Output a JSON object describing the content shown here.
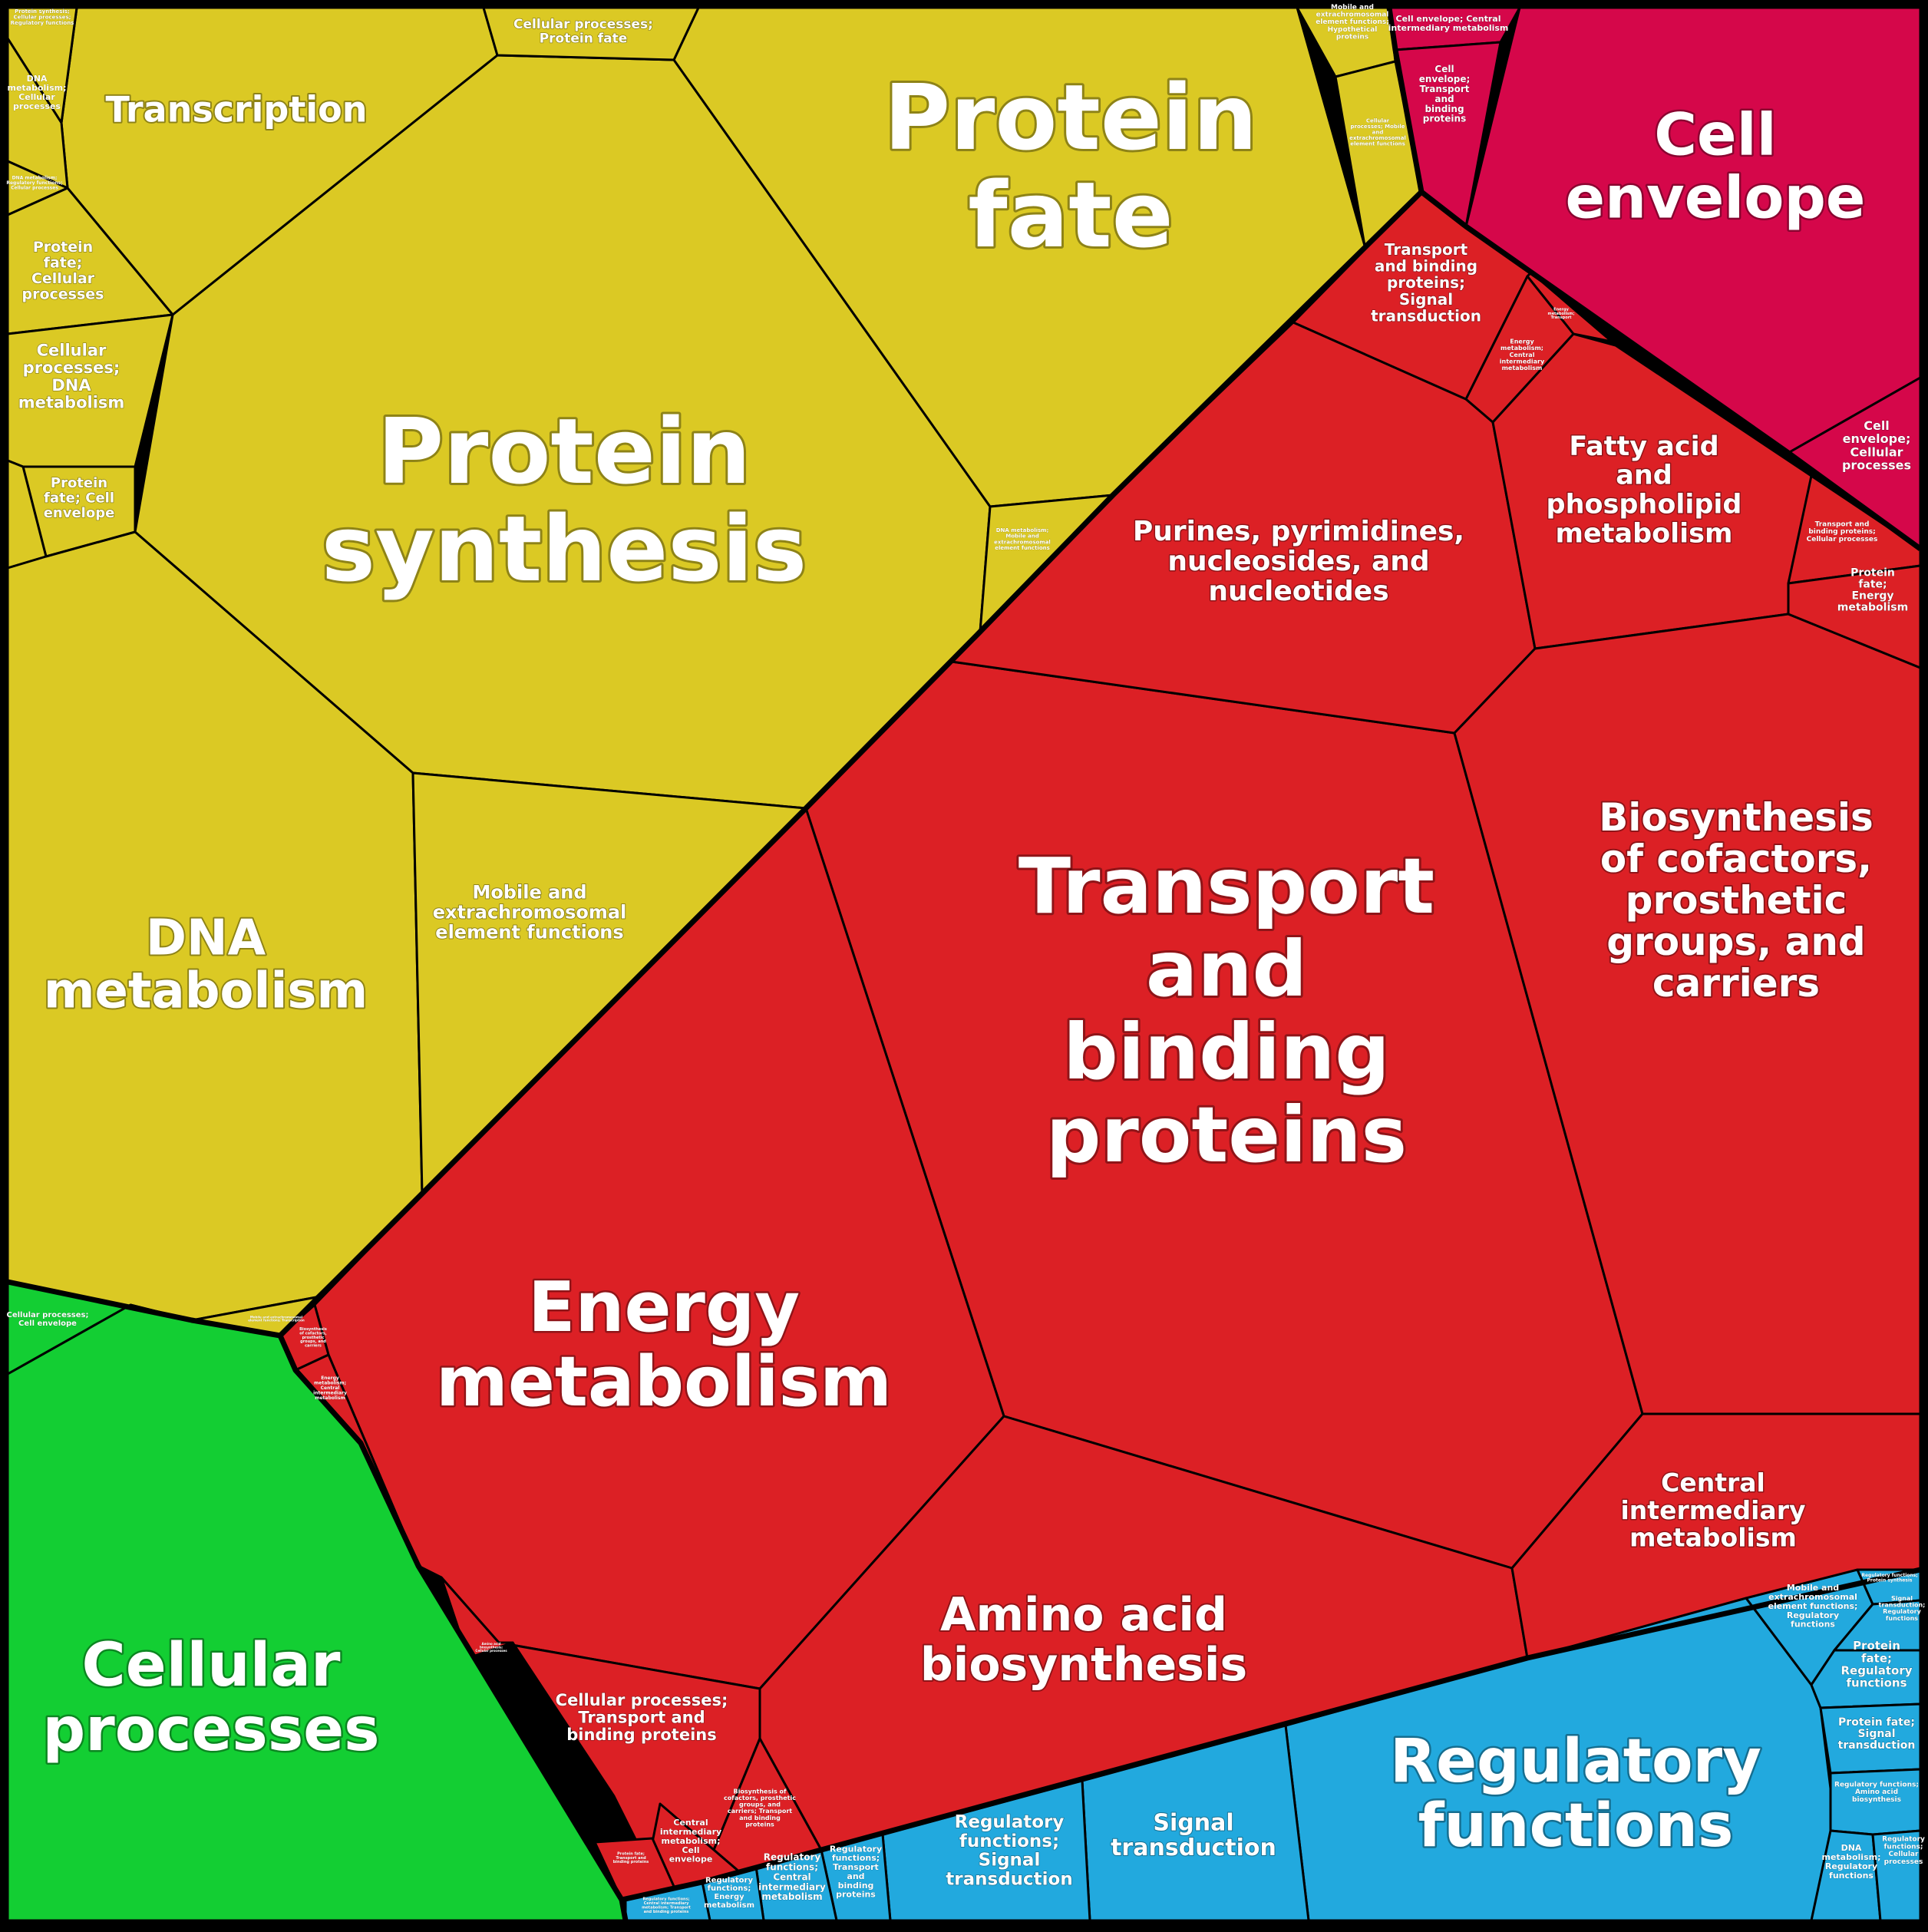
{
  "colors": {
    "yellow": "#dbc924",
    "red": "#dc2025",
    "crimson": "#d5074a",
    "green": "#13ce33",
    "blue": "#22a9de",
    "border": "#000000",
    "label": "#ffffff"
  },
  "categories": {
    "protein_synthesis": "Protein synthesis",
    "protein_fate": "Protein fate",
    "transcription": "Transcription",
    "dna_metabolism": "DNA metabolism",
    "mobile_elements": "Mobile and extrachromosomal element functions",
    "cellular_protein_fate": "Cellular processes; Protein fate",
    "protein_fate_cellular": "Protein fate; Cellular processes",
    "cellular_dna": "Cellular processes; DNA metabolism",
    "protein_fate_cell_envelope": "Protein fate; Cell envelope",
    "small_ps_cellular_regulatory": "Protein synthesis; Cellular processes; Regulatory functions",
    "small_dna_mobile_cellular": "DNA metabolism; Cellular processes",
    "small_dna_regulatory_cellular": "DNA metabolism; Regulatory functions; Cellular processes",
    "small_mobile_protein_fate": "Mobile and extrachromosomal element functions; Hypothetical proteins",
    "small_cellular_mobile": "Cellular processes; Mobile and extrachromosomal element functions",
    "small_dna_mobile": "DNA metabolism; Mobile and extrachromosomal element functions",
    "small_cellular_cell_envelope_yellow": "Cellular processes; Cell envelope",
    "small_mobile_bottom": "Mobile and extrachromosomal element functions; Transcription",
    "cell_envelope": "Cell envelope",
    "cell_envelope_central": "Cell envelope; Central intermediary metabolism",
    "cell_envelope_transport": "Cell envelope; Transport and binding proteins",
    "cell_envelope_cellular": "Cell envelope; Cellular processes",
    "transport_binding": "Transport and binding proteins",
    "energy_metabolism": "Energy metabolism",
    "amino_acid": "Amino acid biosynthesis",
    "purines": "Purines, pyrimidines, nucleosides, and nucleotides",
    "fatty_acid": "Fatty acid and phospholipid metabolism",
    "biosynthesis_cofactors": "Biosynthesis of cofactors, prosthetic groups, and carriers",
    "central_intermediary": "Central intermediary metabolism",
    "transport_signal": "Transport and binding proteins; Signal transduction",
    "energy_central": "Energy metabolism; Central intermediary metabolism",
    "transport_cellular": "Transport and binding proteins; Cellular processes",
    "protein_fate_energy": "Protein fate; Energy metabolism",
    "cellular_transport": "Cellular processes; Transport and binding proteins",
    "biosynth_cellular_transport": "Biosynthesis of cofactors, prosthetic groups, and carriers; Transport and binding proteins",
    "central_cell_envelope": "Central intermediary metabolism; Cell envelope",
    "small_energy_transport": "Energy metabolism; Transport and binding proteins",
    "small_red_left_1": "Biosynthesis of cofactors, prosthetic groups, and carriers",
    "small_red_left_2": "Energy metabolism; Central intermediary metabolism",
    "small_red_bottom_1": "Protein fate; Transport and binding proteins",
    "small_red_bottom_2": "Amino acid biosynthesis; Cellular processes",
    "cellular_processes": "Cellular processes",
    "cellular_cell_envelope": "Cellular processes; Cell envelope",
    "regulatory_functions": "Regulatory functions",
    "signal_transduction": "Signal transduction",
    "regulatory_signal": "Regulatory functions; Signal transduction",
    "regulatory_transport": "Regulatory functions; Transport and binding proteins",
    "regulatory_central": "Regulatory functions; Central intermediary metabolism",
    "regulatory_energy": "Regulatory functions; Energy metabolism",
    "regulatory_central_transport": "Regulatory functions; Central intermediary metabolism; Transport and binding proteins",
    "mobile_regulatory": "Mobile and extrachromosomal element functions; Regulatory functions",
    "protein_fate_regulatory": "Protein fate; Regulatory functions",
    "protein_fate_signal": "Protein fate; Signal transduction",
    "regulatory_amino": "Regulatory functions; Amino acid biosynthesis",
    "dna_regulatory": "DNA metabolism; Regulatory functions",
    "regulatory_cellular": "Regulatory functions; Cellular processes",
    "small_blue_top": "Regulatory functions; Protein synthesis",
    "small_blue_signal": "Signal transduction; Regulatory functions"
  }
}
